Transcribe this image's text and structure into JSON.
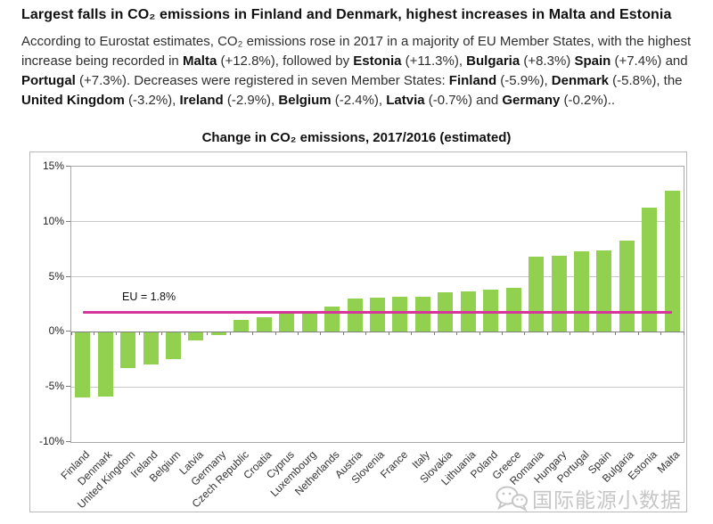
{
  "header": {
    "title": "Largest falls in CO₂ emissions in Finland and Denmark, highest increases in Malta and Estonia",
    "paragraph": [
      {
        "bold": false,
        "text": "According to Eurostat estimates, CO₂ emissions rose in 2017 in a majority of EU Member States, with the highest increase being recorded in "
      },
      {
        "bold": true,
        "text": "Malta"
      },
      {
        "bold": false,
        "text": " (+12.8%), followed by "
      },
      {
        "bold": true,
        "text": "Estonia"
      },
      {
        "bold": false,
        "text": " (+11.3%), "
      },
      {
        "bold": true,
        "text": "Bulgaria"
      },
      {
        "bold": false,
        "text": " (+8.3%) "
      },
      {
        "bold": true,
        "text": "Spain"
      },
      {
        "bold": false,
        "text": " (+7.4%) and "
      },
      {
        "bold": true,
        "text": "Portugal"
      },
      {
        "bold": false,
        "text": " (+7.3%). Decreases were registered in seven Member States: "
      },
      {
        "bold": true,
        "text": "Finland"
      },
      {
        "bold": false,
        "text": " (-5.9%), "
      },
      {
        "bold": true,
        "text": "Denmark"
      },
      {
        "bold": false,
        "text": " (-5.8%), the "
      },
      {
        "bold": true,
        "text": "United Kingdom"
      },
      {
        "bold": false,
        "text": " (-3.2%), "
      },
      {
        "bold": true,
        "text": "Ireland"
      },
      {
        "bold": false,
        "text": " (-2.9%), "
      },
      {
        "bold": true,
        "text": "Belgium"
      },
      {
        "bold": false,
        "text": " (-2.4%), "
      },
      {
        "bold": true,
        "text": "Latvia"
      },
      {
        "bold": false,
        "text": " (-0.7%) and "
      },
      {
        "bold": true,
        "text": "Germany"
      },
      {
        "bold": false,
        "text": " (-0.2%).."
      }
    ]
  },
  "chart_data": {
    "type": "bar",
    "title": "Change in CO₂ emissions, 2017/2016 (estimated)",
    "categories": [
      "Finland",
      "Denmark",
      "United Kingdom",
      "Ireland",
      "Belgium",
      "Latvia",
      "Germany",
      "Czech Republic",
      "Croatia",
      "Cyprus",
      "Luxembourg",
      "Netherlands",
      "Austria",
      "Slovenia",
      "France",
      "Italy",
      "Slovakia",
      "Lithuania",
      "Poland",
      "Greece",
      "Romania",
      "Hungary",
      "Portugal",
      "Spain",
      "Bulgaria",
      "Estonia",
      "Malta"
    ],
    "values": [
      -5.9,
      -5.8,
      -3.2,
      -2.9,
      -2.4,
      -0.7,
      -0.2,
      1.1,
      1.3,
      1.8,
      1.8,
      2.3,
      3.0,
      3.1,
      3.2,
      3.2,
      3.6,
      3.7,
      3.8,
      4.0,
      6.8,
      6.9,
      7.3,
      7.4,
      8.3,
      11.3,
      12.8
    ],
    "xlabel": "",
    "ylabel": "",
    "ylim": [
      -10,
      15
    ],
    "yticks": [
      15,
      10,
      5,
      0,
      -5,
      -10
    ],
    "ytick_labels": [
      "15%",
      "10%",
      "5%",
      "0%",
      "-5%",
      "-10%"
    ],
    "grid": true,
    "legend": "none",
    "bar_color": "#92D050",
    "reference_line": {
      "label": "EU = 1.8%",
      "value": 1.8,
      "color": "#D6359B"
    }
  },
  "watermark": {
    "icon": "wechat-icon",
    "text": "国际能源小数据",
    "color": "#c6c6c6"
  }
}
